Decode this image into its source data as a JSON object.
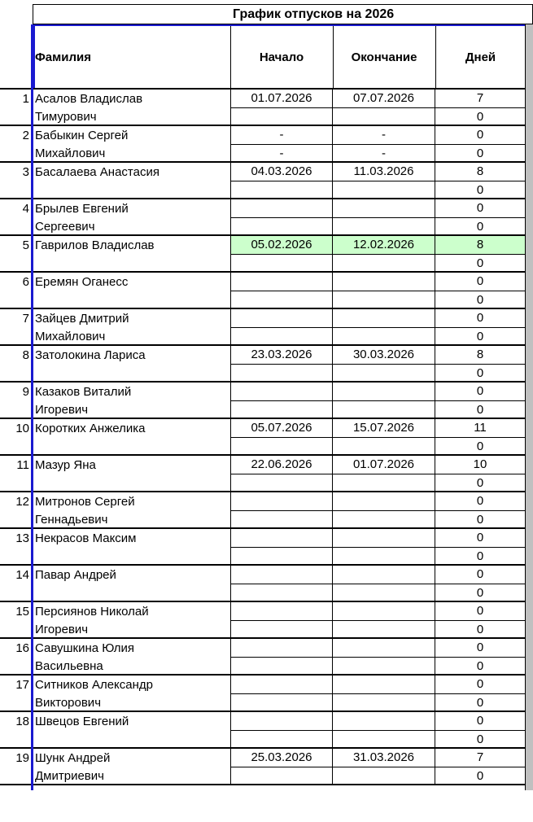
{
  "title": "График отпусков на 2026",
  "headers": {
    "name": "Фамилия",
    "start": "Начало",
    "end": "Окончание",
    "days": "Дней"
  },
  "highlight_color": "#ccffcc",
  "rows": [
    {
      "n": "1",
      "l1": "Асалов Владислав",
      "l2": "Тимурович",
      "s1": "01.07.2026",
      "e1": "07.07.2026",
      "d1": "7",
      "s2": "",
      "e2": "",
      "d2": "0"
    },
    {
      "n": "2",
      "l1": "Бабыкин Сергей",
      "l2": "Михайлович",
      "s1": "-",
      "e1": "-",
      "d1": "0",
      "s2": "-",
      "e2": "-",
      "d2": "0"
    },
    {
      "n": "3",
      "l1": "Басалаева Анастасия",
      "l2": "",
      "s1": "04.03.2026",
      "e1": "11.03.2026",
      "d1": "8",
      "s2": "",
      "e2": "",
      "d2": "0"
    },
    {
      "n": "4",
      "l1": "Брылев Евгений",
      "l2": "Сергеевич",
      "s1": "",
      "e1": "",
      "d1": "0",
      "s2": "",
      "e2": "",
      "d2": "0"
    },
    {
      "n": "5",
      "l1": "Гаврилов Владислав",
      "l2": "",
      "s1": "05.02.2026",
      "e1": "12.02.2026",
      "d1": "8",
      "s2": "",
      "e2": "",
      "d2": "0",
      "highlight": true
    },
    {
      "n": "6",
      "l1": "Еремян Оганесс",
      "l2": "",
      "s1": "",
      "e1": "",
      "d1": "0",
      "s2": "",
      "e2": "",
      "d2": "0"
    },
    {
      "n": "7",
      "l1": "Зайцев Дмитрий",
      "l2": "Михайлович",
      "s1": "",
      "e1": "",
      "d1": "0",
      "s2": "",
      "e2": "",
      "d2": "0"
    },
    {
      "n": "8",
      "l1": "Затолокина Лариса",
      "l2": "",
      "s1": "23.03.2026",
      "e1": "30.03.2026",
      "d1": "8",
      "s2": "",
      "e2": "",
      "d2": "0"
    },
    {
      "n": "9",
      "l1": "Казаков Виталий",
      "l2": "Игоревич",
      "s1": "",
      "e1": "",
      "d1": "0",
      "s2": "",
      "e2": "",
      "d2": "0"
    },
    {
      "n": "10",
      "l1": "Коротких Анжелика",
      "l2": "",
      "s1": "05.07.2026",
      "e1": "15.07.2026",
      "d1": "11",
      "s2": "",
      "e2": "",
      "d2": "0"
    },
    {
      "n": "11",
      "l1": "Мазур Яна",
      "l2": "",
      "s1": "22.06.2026",
      "e1": "01.07.2026",
      "d1": "10",
      "s2": "",
      "e2": "",
      "d2": "0"
    },
    {
      "n": "12",
      "l1": "Митронов Сергей",
      "l2": "Геннадьевич",
      "s1": "",
      "e1": "",
      "d1": "0",
      "s2": "",
      "e2": "",
      "d2": "0"
    },
    {
      "n": "13",
      "l1": "Некрасов Максим",
      "l2": "",
      "s1": "",
      "e1": "",
      "d1": "0",
      "s2": "",
      "e2": "",
      "d2": "0"
    },
    {
      "n": "14",
      "l1": "Павар Андрей",
      "l2": "",
      "s1": "",
      "e1": "",
      "d1": "0",
      "s2": "",
      "e2": "",
      "d2": "0"
    },
    {
      "n": "15",
      "l1": "Персиянов Николай",
      "l2": "Игоревич",
      "s1": "",
      "e1": "",
      "d1": "0",
      "s2": "",
      "e2": "",
      "d2": "0"
    },
    {
      "n": "16",
      "l1": "Савушкина Юлия",
      "l2": "Васильевна",
      "s1": "",
      "e1": "",
      "d1": "0",
      "s2": "",
      "e2": "",
      "d2": "0"
    },
    {
      "n": "17",
      "l1": "Ситников Александр",
      "l2": "Викторович",
      "s1": "",
      "e1": "",
      "d1": "0",
      "s2": "",
      "e2": "",
      "d2": "0"
    },
    {
      "n": "18",
      "l1": "Швецов Евгений",
      "l2": "",
      "s1": "",
      "e1": "",
      "d1": "0",
      "s2": "",
      "e2": "",
      "d2": "0"
    },
    {
      "n": "19",
      "l1": "Шунк Андрей",
      "l2": "Дмитриевич",
      "s1": "25.03.2026",
      "e1": "31.03.2026",
      "d1": "7",
      "s2": "",
      "e2": "",
      "d2": "0"
    }
  ]
}
